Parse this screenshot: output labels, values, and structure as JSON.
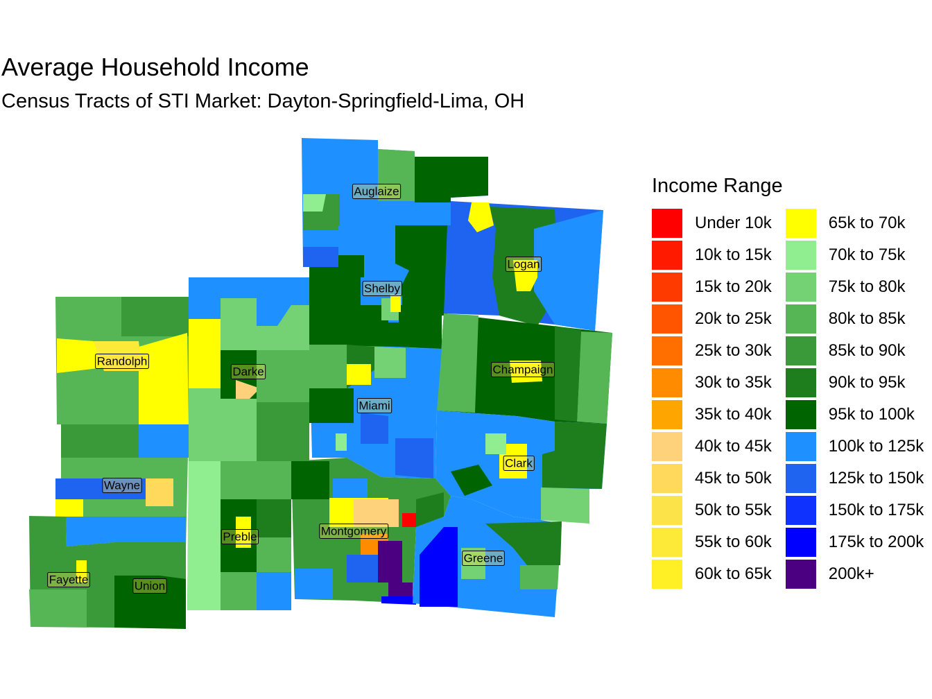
{
  "title": "Average Household Income",
  "subtitle": "Census Tracts of STI Market: Dayton-Springfield-Lima, OH",
  "legend": {
    "title": "Income Range",
    "items": [
      {
        "label": "Under 10k",
        "color": "#ff0000"
      },
      {
        "label": "10k to 15k",
        "color": "#ff1a00"
      },
      {
        "label": "15k to 20k",
        "color": "#ff3a00"
      },
      {
        "label": "20k to 25k",
        "color": "#ff5500"
      },
      {
        "label": "25k to 30k",
        "color": "#ff6f00"
      },
      {
        "label": "30k to 35k",
        "color": "#ff8c00"
      },
      {
        "label": "35k to 40k",
        "color": "#ffa500"
      },
      {
        "label": "40k to 45k",
        "color": "#fed27a"
      },
      {
        "label": "45k to 50k",
        "color": "#fed95c"
      },
      {
        "label": "50k to 55k",
        "color": "#fde34a"
      },
      {
        "label": "55k to 60k",
        "color": "#fde938"
      },
      {
        "label": "60k to 65k",
        "color": "#fff026"
      },
      {
        "label": "65k to 70k",
        "color": "#ffff00"
      },
      {
        "label": "70k to 75k",
        "color": "#90ee90"
      },
      {
        "label": "75k to 80k",
        "color": "#74d274"
      },
      {
        "label": "80k to 85k",
        "color": "#56b656"
      },
      {
        "label": "85k to 90k",
        "color": "#3a9a3a"
      },
      {
        "label": "90k to 95k",
        "color": "#1e7e1e"
      },
      {
        "label": "95k to 100k",
        "color": "#006400"
      },
      {
        "label": "100k to 125k",
        "color": "#1e90ff"
      },
      {
        "label": "125k to 150k",
        "color": "#1e64f0"
      },
      {
        "label": "150k to 175k",
        "color": "#0f32ff"
      },
      {
        "label": "175k to 200k",
        "color": "#0000ff"
      },
      {
        "label": "200k+",
        "color": "#4b0082"
      }
    ]
  },
  "counties": [
    {
      "name": "Auglaize"
    },
    {
      "name": "Shelby"
    },
    {
      "name": "Logan"
    },
    {
      "name": "Randolph"
    },
    {
      "name": "Darke"
    },
    {
      "name": "Champaign"
    },
    {
      "name": "Miami"
    },
    {
      "name": "Clark"
    },
    {
      "name": "Wayne"
    },
    {
      "name": "Preble"
    },
    {
      "name": "Montgomery"
    },
    {
      "name": "Greene"
    },
    {
      "name": "Fayette"
    },
    {
      "name": "Union"
    }
  ]
}
